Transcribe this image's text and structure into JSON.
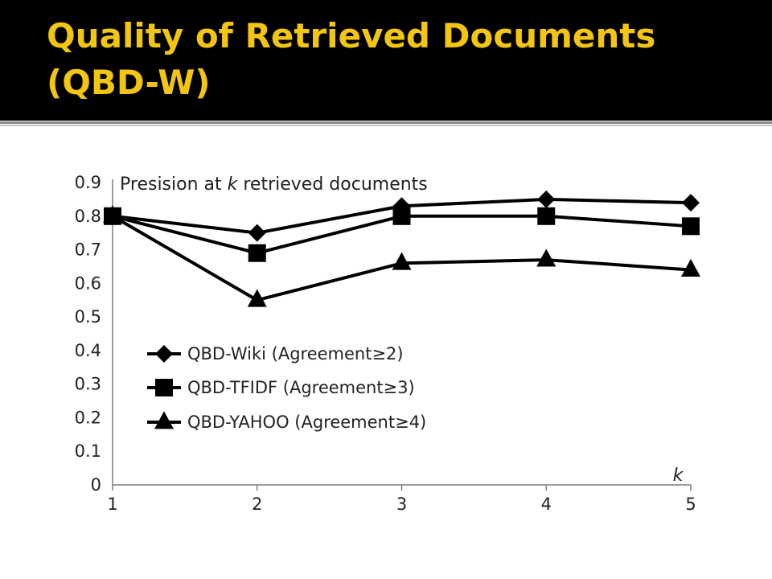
{
  "slide": {
    "title_line1": "Quality of Retrieved Documents",
    "title_line2": "(QBD-W)",
    "title_color": "#f2c511",
    "header_bg": "#000000"
  },
  "chart_data": {
    "type": "line",
    "title_pre": "Presision at ",
    "title_k": "k",
    "title_post": " retrieved documents",
    "xlabel": "k",
    "ylabel": "",
    "x": [
      1,
      2,
      3,
      4,
      5
    ],
    "xtick_labels": [
      "1",
      "2",
      "3",
      "4",
      "5"
    ],
    "ylim": [
      0,
      0.9
    ],
    "ytick_labels": [
      "0",
      "0.1",
      "0.2",
      "0.3",
      "0.4",
      "0.5",
      "0.6",
      "0.7",
      "0.8",
      "0.9"
    ],
    "grid": false,
    "legend_position": "lower-left",
    "line_color": "#000000",
    "series": [
      {
        "name": "QBD-Wiki (Agreement≥2)",
        "marker": "diamond",
        "values": [
          0.8,
          0.75,
          0.83,
          0.85,
          0.84
        ]
      },
      {
        "name": "QBD-TFIDF (Agreement≥3)",
        "marker": "square",
        "values": [
          0.8,
          0.69,
          0.8,
          0.8,
          0.77
        ]
      },
      {
        "name": "QBD-YAHOO (Agreement≥4)",
        "marker": "triangle",
        "values": [
          0.8,
          0.55,
          0.66,
          0.67,
          0.64
        ]
      }
    ]
  }
}
